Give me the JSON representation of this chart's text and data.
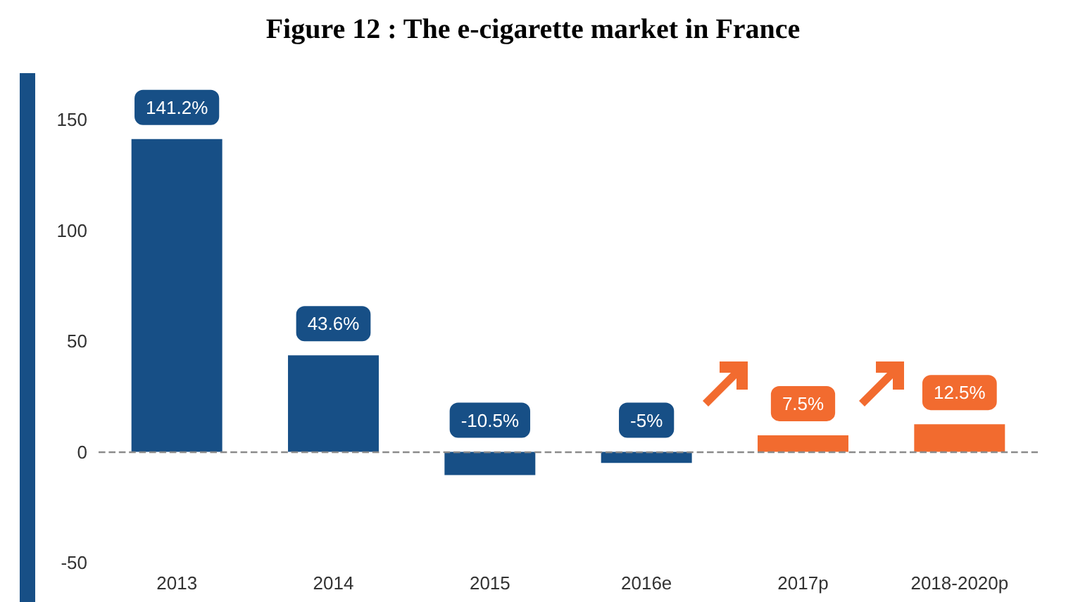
{
  "chart_data": {
    "type": "bar",
    "title": "Figure 12 : The e-cigarette market in France",
    "categories": [
      "2013",
      "2014",
      "2015",
      "2016e",
      "2017p",
      "2018-2020p"
    ],
    "values": [
      141.2,
      43.6,
      -10.5,
      -5,
      7.5,
      12.5
    ],
    "colors": [
      "#174f86",
      "#174f86",
      "#174f86",
      "#174f86",
      "#f26b2f",
      "#f26b2f"
    ],
    "value_labels": [
      "141.2%",
      "43.6%",
      "-10.5%",
      "-5%",
      "7.5%",
      "12.5%"
    ],
    "ylim": [
      -50,
      150
    ],
    "yticks": [
      -50,
      0,
      50,
      100,
      150
    ],
    "grid": false,
    "ref_lines": [
      {
        "axis": "y",
        "value": 0,
        "color": "#8a8a8a",
        "line_style": "dashed"
      }
    ]
  }
}
